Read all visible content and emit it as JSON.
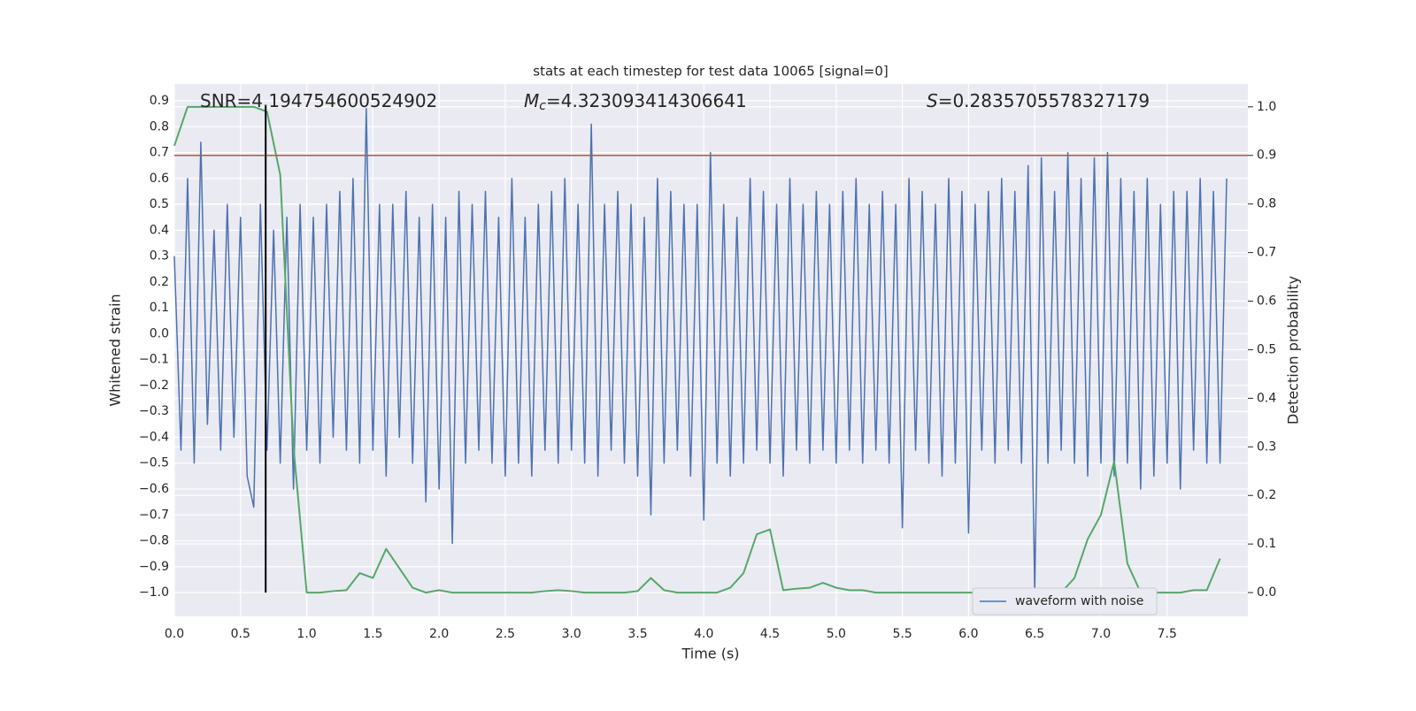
{
  "chart_data": {
    "type": "line",
    "title": "stats at each timestep for test data 10065 [signal=0]",
    "xlabel": "Time (s)",
    "ylabel": "Whitened strain",
    "y2label": "Detection probability",
    "annotations": [
      {
        "text": "SNR=4.194754600524902"
      },
      {
        "symbol": "M",
        "subscript": "c",
        "text": "=4.323093414306641"
      },
      {
        "symbol": "S",
        "text": "=0.2835705578327179"
      }
    ],
    "xlim": [
      0,
      8.11
    ],
    "ylim": [
      -1.092,
      0.965
    ],
    "y2lim": [
      -0.049,
      1.047
    ],
    "xticks": [
      {
        "value": 0,
        "label": "0.0"
      },
      0.5,
      {
        "value": 1,
        "label": "1.0"
      },
      1.5,
      {
        "value": 2,
        "label": "2.0"
      },
      2.5,
      {
        "value": 3,
        "label": "3.0"
      },
      3.5,
      {
        "value": 4,
        "label": "4.0"
      },
      4.5,
      {
        "value": 5,
        "label": "5.0"
      },
      5.5,
      {
        "value": 6,
        "label": "6.0"
      },
      6.5,
      {
        "value": 7,
        "label": "7.0"
      },
      7.5
    ],
    "yticks": [
      {
        "value": 0.9,
        "label": "0.9"
      },
      {
        "value": 0.8,
        "label": "0.8"
      },
      {
        "value": 0.7,
        "label": "0.7"
      },
      {
        "value": 0.6,
        "label": "0.6"
      },
      {
        "value": 0.5,
        "label": "0.5"
      },
      {
        "value": 0.4,
        "label": "0.4"
      },
      {
        "value": 0.3,
        "label": "0.3"
      },
      {
        "value": 0.2,
        "label": "0.2"
      },
      {
        "value": 0.1,
        "label": "0.1"
      },
      {
        "value": 0,
        "label": "0.0"
      },
      {
        "value": -0.1,
        "label": "−0.1"
      },
      {
        "value": -0.2,
        "label": "−0.2"
      },
      {
        "value": -0.3,
        "label": "−0.3"
      },
      {
        "value": -0.4,
        "label": "−0.4"
      },
      {
        "value": -0.5,
        "label": "−0.5"
      },
      {
        "value": -0.6,
        "label": "−0.6"
      },
      {
        "value": -0.7,
        "label": "−0.7"
      },
      {
        "value": -0.8,
        "label": "−0.8"
      },
      {
        "value": -0.9,
        "label": "−0.9"
      },
      {
        "value": -1,
        "label": "−1.0"
      }
    ],
    "y2ticks": [
      {
        "value": 0,
        "label": "0.0"
      },
      0.1,
      0.2,
      0.3,
      0.4,
      0.5,
      0.6,
      0.7,
      0.8,
      0.9,
      {
        "value": 1,
        "label": "1.0"
      }
    ],
    "grid": true,
    "legend": "lower right",
    "threshold": {
      "value": 0.9,
      "axis": "y2",
      "color": "#c44e52"
    },
    "marker": {
      "x": 0.69,
      "ymin": -1,
      "ymax": 0.88,
      "color": "#000000"
    },
    "series": [
      {
        "name": "waveform with noise",
        "color": "#4c72b0",
        "x": [
          0,
          0.05,
          0.1,
          0.15,
          0.2,
          0.25,
          0.3,
          0.35,
          0.4,
          0.45,
          0.5,
          0.55,
          0.6,
          0.65,
          0.7,
          0.75,
          0.8,
          0.85,
          0.9,
          0.95,
          1,
          1.05,
          1.1,
          1.15,
          1.2,
          1.25,
          1.3,
          1.35,
          1.4,
          1.45,
          1.5,
          1.55,
          1.6,
          1.65,
          1.7,
          1.75,
          1.8,
          1.85,
          1.9,
          1.95,
          2,
          2.05,
          2.1,
          2.15,
          2.2,
          2.25,
          2.3,
          2.35,
          2.4,
          2.45,
          2.5,
          2.55,
          2.6,
          2.65,
          2.7,
          2.75,
          2.8,
          2.85,
          2.9,
          2.95,
          3,
          3.05,
          3.1,
          3.15,
          3.2,
          3.25,
          3.3,
          3.35,
          3.4,
          3.45,
          3.5,
          3.55,
          3.6,
          3.65,
          3.7,
          3.75,
          3.8,
          3.85,
          3.9,
          3.95,
          4,
          4.05,
          4.1,
          4.15,
          4.2,
          4.25,
          4.3,
          4.35,
          4.4,
          4.45,
          4.5,
          4.55,
          4.6,
          4.65,
          4.7,
          4.75,
          4.8,
          4.85,
          4.9,
          4.95,
          5,
          5.05,
          5.1,
          5.15,
          5.2,
          5.25,
          5.3,
          5.35,
          5.4,
          5.45,
          5.5,
          5.55,
          5.6,
          5.65,
          5.7,
          5.75,
          5.8,
          5.85,
          5.9,
          5.95,
          6,
          6.05,
          6.1,
          6.15,
          6.2,
          6.25,
          6.3,
          6.35,
          6.4,
          6.45,
          6.5,
          6.55,
          6.6,
          6.65,
          6.7,
          6.75,
          6.8,
          6.85,
          6.9,
          6.95,
          7,
          7.05,
          7.1,
          7.15,
          7.2,
          7.25,
          7.3,
          7.35,
          7.4,
          7.45,
          7.5,
          7.55,
          7.6,
          7.65,
          7.7,
          7.75,
          7.8,
          7.85,
          7.9,
          7.95
        ],
        "values": [
          0.3,
          -0.45,
          0.6,
          -0.5,
          0.74,
          -0.35,
          0.4,
          -0.45,
          0.5,
          -0.4,
          0.45,
          -0.55,
          -0.67,
          0.5,
          -0.45,
          0.4,
          -0.5,
          0.45,
          -0.6,
          0.5,
          -0.45,
          0.45,
          -0.5,
          0.5,
          -0.4,
          0.55,
          -0.45,
          0.6,
          -0.5,
          0.87,
          -0.45,
          0.5,
          -0.55,
          0.5,
          -0.4,
          0.55,
          -0.5,
          0.45,
          -0.65,
          0.5,
          -0.6,
          0.45,
          -0.81,
          0.55,
          -0.5,
          0.5,
          -0.45,
          0.55,
          -0.5,
          0.45,
          -0.55,
          0.6,
          -0.5,
          0.45,
          -0.55,
          0.5,
          -0.45,
          0.55,
          -0.5,
          0.6,
          -0.45,
          0.5,
          -0.5,
          0.81,
          -0.55,
          0.5,
          -0.45,
          0.55,
          -0.5,
          0.5,
          -0.55,
          0.45,
          -0.7,
          0.6,
          -0.5,
          0.55,
          -0.45,
          0.5,
          -0.55,
          0.5,
          -0.72,
          0.7,
          -0.5,
          0.5,
          -0.55,
          0.45,
          -0.5,
          0.6,
          -0.45,
          0.55,
          -0.5,
          0.5,
          -0.55,
          0.6,
          -0.45,
          0.5,
          -0.5,
          0.55,
          -0.45,
          0.5,
          -0.5,
          0.55,
          -0.45,
          0.6,
          -0.5,
          0.5,
          -0.45,
          0.55,
          -0.5,
          0.5,
          -0.75,
          0.6,
          -0.45,
          0.55,
          -0.5,
          0.5,
          -0.55,
          0.6,
          -0.5,
          0.55,
          -0.77,
          0.5,
          -0.45,
          0.55,
          -0.5,
          0.6,
          -0.45,
          0.55,
          -0.5,
          0.65,
          -1,
          0.68,
          -0.5,
          0.55,
          -0.45,
          0.7,
          -0.5,
          0.6,
          -0.55,
          0.68,
          -0.5,
          0.7,
          -0.55,
          0.6,
          -0.5,
          0.55,
          -0.6,
          0.6,
          -0.55,
          0.5,
          -0.5,
          0.55,
          -0.6,
          0.55,
          -0.45,
          0.6,
          -0.5,
          0.55,
          -0.5,
          0.6
        ]
      },
      {
        "color": "#55a868",
        "axis": "y2",
        "x": [
          0,
          0.1,
          0.2,
          0.3,
          0.4,
          0.5,
          0.6,
          0.7,
          0.8,
          0.9,
          1,
          1.1,
          1.2,
          1.3,
          1.4,
          1.5,
          1.6,
          1.7,
          1.8,
          1.9,
          2,
          2.1,
          2.2,
          2.3,
          2.4,
          2.5,
          2.6,
          2.7,
          2.8,
          2.9,
          3,
          3.1,
          3.2,
          3.3,
          3.4,
          3.5,
          3.6,
          3.7,
          3.8,
          3.9,
          4,
          4.1,
          4.2,
          4.3,
          4.4,
          4.5,
          4.6,
          4.7,
          4.8,
          4.9,
          5,
          5.1,
          5.2,
          5.3,
          5.4,
          5.5,
          5.6,
          5.7,
          5.8,
          5.9,
          6,
          6.1,
          6.2,
          6.3,
          6.4,
          6.5,
          6.6,
          6.7,
          6.8,
          6.9,
          7,
          7.1,
          7.2,
          7.3,
          7.4,
          7.5,
          7.6,
          7.7,
          7.8,
          7.9
        ],
        "values": [
          0.92,
          1,
          1,
          1,
          1,
          1,
          1,
          0.99,
          0.86,
          0.3,
          0,
          0,
          0.003,
          0.005,
          0.04,
          0.03,
          0.09,
          0.05,
          0.01,
          0,
          0.005,
          0,
          0,
          0,
          0,
          0,
          0,
          0,
          0.003,
          0.005,
          0.003,
          0,
          0,
          0,
          0,
          0.003,
          0.03,
          0.005,
          0,
          0,
          0,
          0,
          0.01,
          0.04,
          0.12,
          0.13,
          0.005,
          0.008,
          0.01,
          0.02,
          0.01,
          0.005,
          0.005,
          0,
          0,
          0,
          0,
          0,
          0,
          0,
          0,
          0,
          0,
          0,
          0,
          0,
          0,
          0,
          0.03,
          0.11,
          0.16,
          0.27,
          0.06,
          0,
          0,
          0,
          0,
          0.005,
          0.005,
          0.07
        ]
      }
    ]
  }
}
